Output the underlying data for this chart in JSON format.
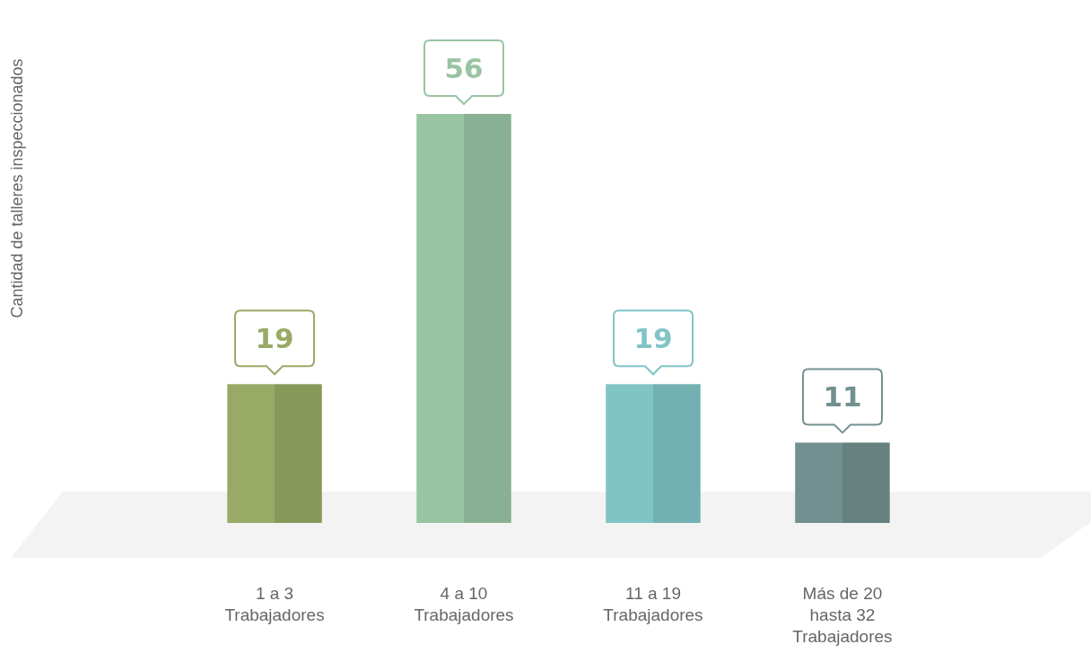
{
  "chart_data": {
    "type": "bar",
    "annotations": [
      "Cantidad de talleres inspeccionados"
    ],
    "categories": [
      "1 a 3 Trabajadores",
      "4 a 10 Trabajadores",
      "11 a 19 Trabajadores",
      "Más de 20 hasta 32 Trabajadores"
    ],
    "values": [
      19,
      56,
      19,
      11
    ],
    "colors": [
      "#99aa66",
      "#99c4a2",
      "#80c4c6",
      "#72908f"
    ],
    "data_labels": true
  }
}
